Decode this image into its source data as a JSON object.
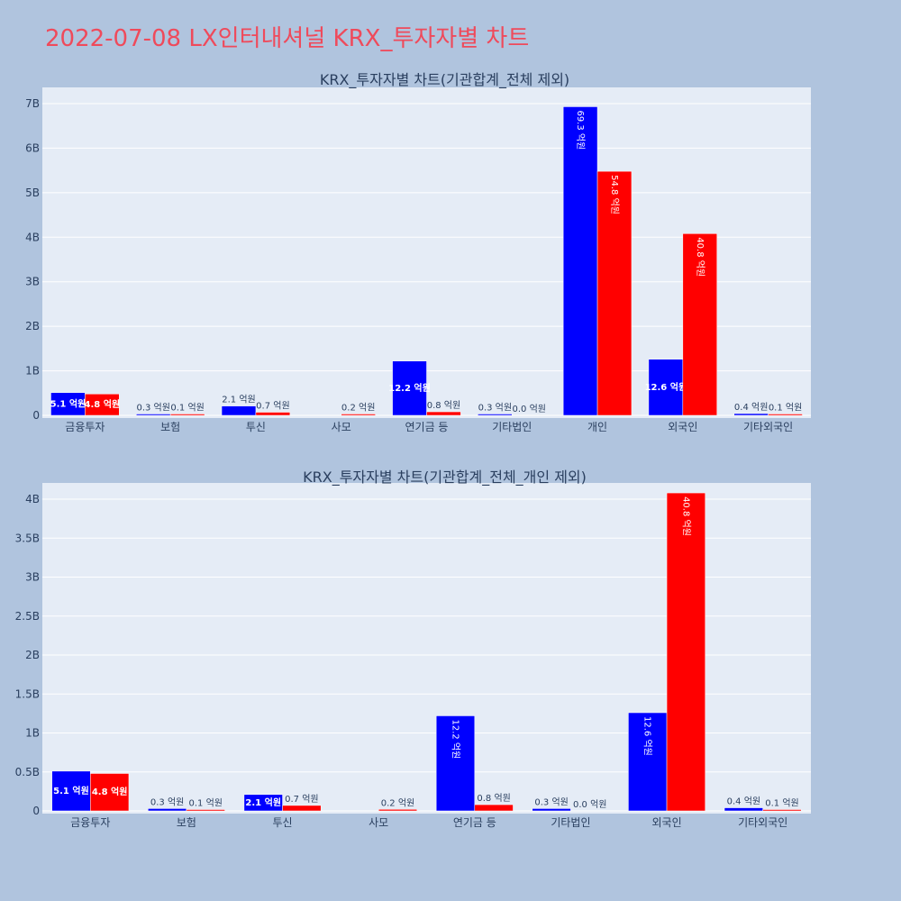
{
  "title": "2022-07-08 LX인터내셔널 KRX_투자자별 차트",
  "chart_data": [
    {
      "type": "bar",
      "title": "KRX_투자자별 차트(기관합계_전체 제외)",
      "categories": [
        "금융투자",
        "보험",
        "투신",
        "사모",
        "연기금 등",
        "기타법인",
        "개인",
        "외국인",
        "기타외국인"
      ],
      "series": [
        {
          "color": "#0000ff",
          "values": [
            510000000,
            30000000,
            210000000,
            0,
            1220000000,
            30000000,
            6930000000,
            1260000000,
            40000000
          ],
          "labels": [
            "5.1 억원",
            "0.3 억원",
            "2.1 억원",
            "",
            "12.2 억원",
            "0.3 억원",
            "69.3 억원",
            "12.6 억원",
            "0.4 억원"
          ]
        },
        {
          "color": "#ff0000",
          "values": [
            480000000,
            10000000,
            70000000,
            20000000,
            80000000,
            0,
            5480000000,
            4080000000,
            10000000
          ],
          "labels": [
            "4.8 억원",
            "0.1 억원",
            "0.7 억원",
            "0.2 억원",
            "0.8 억원",
            "0.0 억원",
            "54.8 억원",
            "40.8 억원",
            "0.1 억원"
          ]
        }
      ],
      "ylim": [
        0,
        7000000000
      ],
      "yticks": [
        0,
        1000000000,
        2000000000,
        3000000000,
        4000000000,
        5000000000,
        6000000000,
        7000000000
      ],
      "ytick_labels": [
        "0",
        "1B",
        "2B",
        "3B",
        "4B",
        "5B",
        "6B",
        "7B"
      ],
      "grid": true
    },
    {
      "type": "bar",
      "title": "KRX_투자자별 차트(기관합계_전체_개인 제외)",
      "categories": [
        "금융투자",
        "보험",
        "투신",
        "사모",
        "연기금 등",
        "기타법인",
        "외국인",
        "기타외국인"
      ],
      "series": [
        {
          "color": "#0000ff",
          "values": [
            510000000,
            30000000,
            210000000,
            0,
            1220000000,
            30000000,
            1260000000,
            40000000
          ],
          "labels": [
            "5.1 억원",
            "0.3 억원",
            "2.1 억원",
            "",
            "12.2 억원",
            "0.3 억원",
            "12.6 억원",
            "0.4 억원"
          ]
        },
        {
          "color": "#ff0000",
          "values": [
            480000000,
            10000000,
            70000000,
            20000000,
            80000000,
            0,
            4080000000,
            10000000
          ],
          "labels": [
            "4.8 억원",
            "0.1 억원",
            "0.7 억원",
            "0.2 억원",
            "0.8 억원",
            "0.0 억원",
            "40.8 억원",
            "0.1 억원"
          ]
        }
      ],
      "ylim": [
        0,
        4000000000
      ],
      "yticks": [
        0,
        500000000,
        1000000000,
        1500000000,
        2000000000,
        2500000000,
        3000000000,
        3500000000,
        4000000000
      ],
      "ytick_labels": [
        "0",
        "0.5B",
        "1B",
        "1.5B",
        "2B",
        "2.5B",
        "3B",
        "3.5B",
        "4B"
      ],
      "grid": true
    }
  ]
}
